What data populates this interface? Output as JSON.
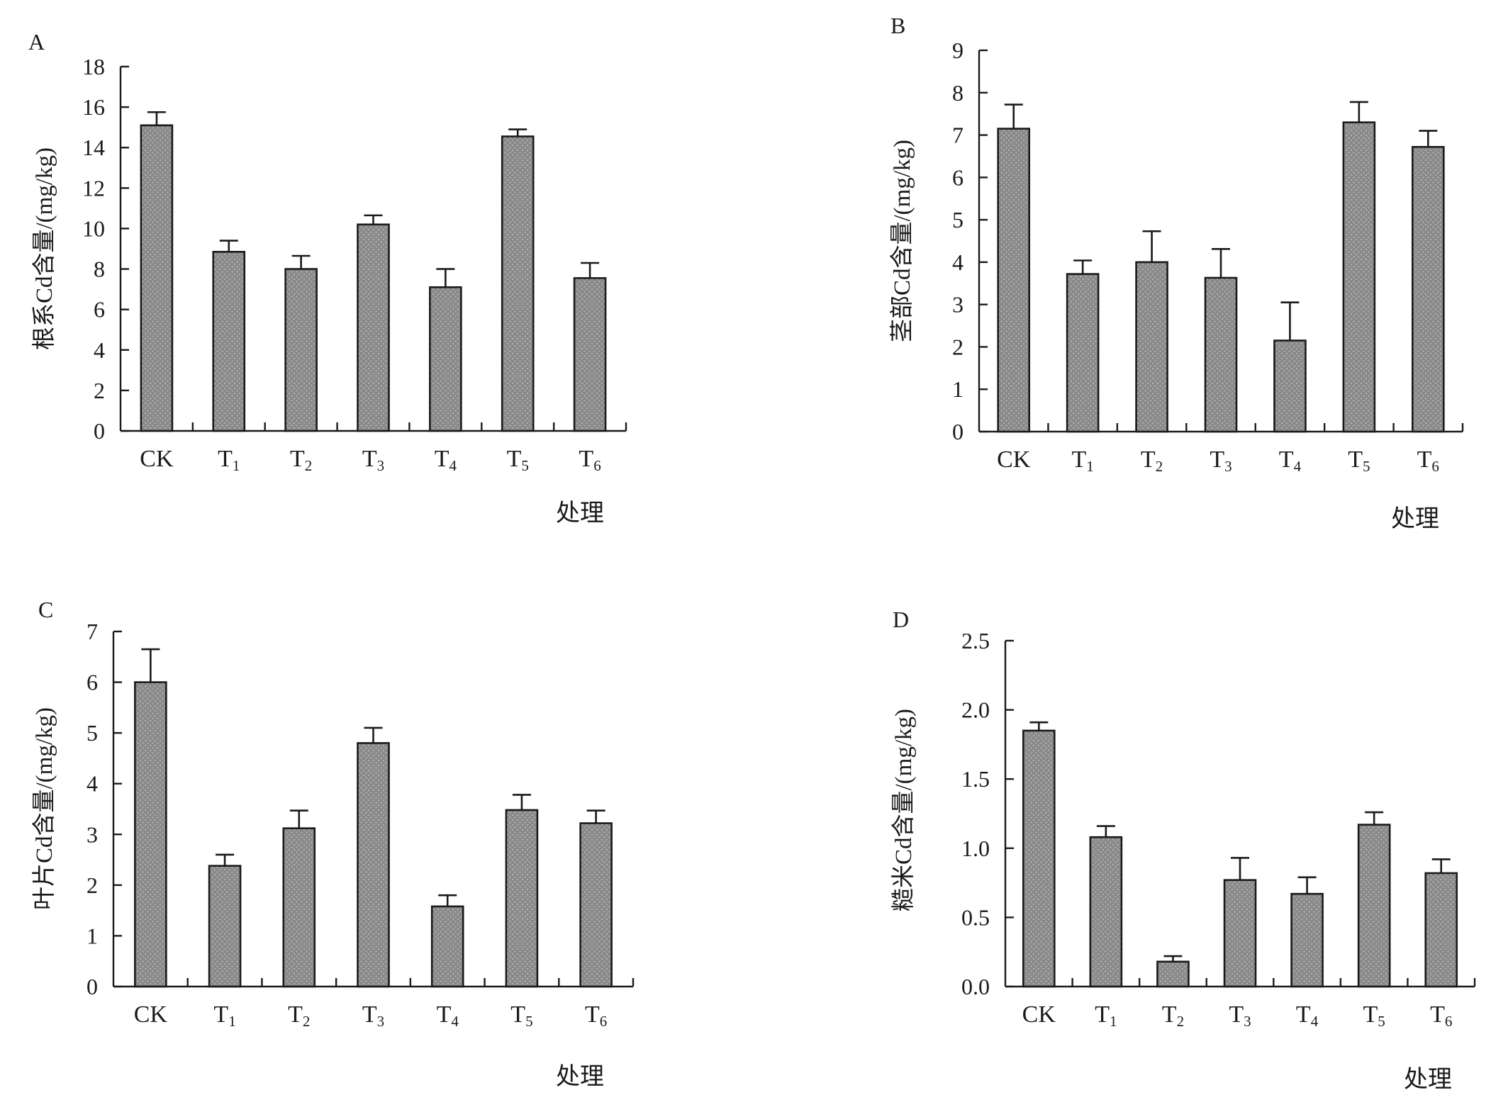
{
  "chart_data": [
    {
      "panel": "A",
      "type": "bar",
      "categories": [
        "CK",
        "T1",
        "T2",
        "T3",
        "T4",
        "T5",
        "T6"
      ],
      "values": [
        15.1,
        8.85,
        8.0,
        10.2,
        7.1,
        14.55,
        7.55
      ],
      "errors": [
        0.65,
        0.55,
        0.65,
        0.45,
        0.9,
        0.35,
        0.75
      ],
      "ylabel": "根系Cd含量/(mg/kg)",
      "xlabel": "处理",
      "ylim": [
        0,
        18
      ],
      "yticks": [
        "0",
        "2",
        "4",
        "6",
        "8",
        "10",
        "12",
        "14",
        "16",
        "18"
      ]
    },
    {
      "panel": "B",
      "type": "bar",
      "categories": [
        "CK",
        "T1",
        "T2",
        "T3",
        "T4",
        "T5",
        "T6"
      ],
      "values": [
        7.15,
        3.72,
        4.0,
        3.63,
        2.15,
        7.3,
        6.72
      ],
      "errors": [
        0.57,
        0.32,
        0.73,
        0.68,
        0.9,
        0.48,
        0.38
      ],
      "ylabel": "茎部Cd含量/(mg/kg)",
      "xlabel": "处理",
      "ylim": [
        0,
        9
      ],
      "yticks": [
        "0",
        "1",
        "2",
        "3",
        "4",
        "5",
        "6",
        "7",
        "8",
        "9"
      ]
    },
    {
      "panel": "C",
      "type": "bar",
      "categories": [
        "CK",
        "T1",
        "T2",
        "T3",
        "T4",
        "T5",
        "T6"
      ],
      "values": [
        6.0,
        2.38,
        3.12,
        4.8,
        1.58,
        3.48,
        3.22
      ],
      "errors": [
        0.65,
        0.22,
        0.35,
        0.3,
        0.22,
        0.3,
        0.25
      ],
      "ylabel": "叶片Cd含量/(mg/kg)",
      "xlabel": "处理",
      "ylim": [
        0,
        7
      ],
      "yticks": [
        "0",
        "1",
        "2",
        "3",
        "4",
        "5",
        "6",
        "7"
      ]
    },
    {
      "panel": "D",
      "type": "bar",
      "categories": [
        "CK",
        "T1",
        "T2",
        "T3",
        "T4",
        "T5",
        "T6"
      ],
      "values": [
        1.85,
        1.08,
        0.18,
        0.77,
        0.67,
        1.17,
        0.82
      ],
      "errors": [
        0.06,
        0.08,
        0.04,
        0.16,
        0.12,
        0.09,
        0.1
      ],
      "ylabel": "糙米Cd含量/(mg/kg)",
      "xlabel": "处理",
      "ylim": [
        0,
        2.5
      ],
      "yticks": [
        "0.0",
        "0.5",
        "1.0",
        "1.5",
        "2.0",
        "2.5"
      ]
    }
  ],
  "style": {
    "bar_fill": "#8a8a8a",
    "bar_dot": "#b4b4b4",
    "line_color": "#1a1a1a"
  }
}
